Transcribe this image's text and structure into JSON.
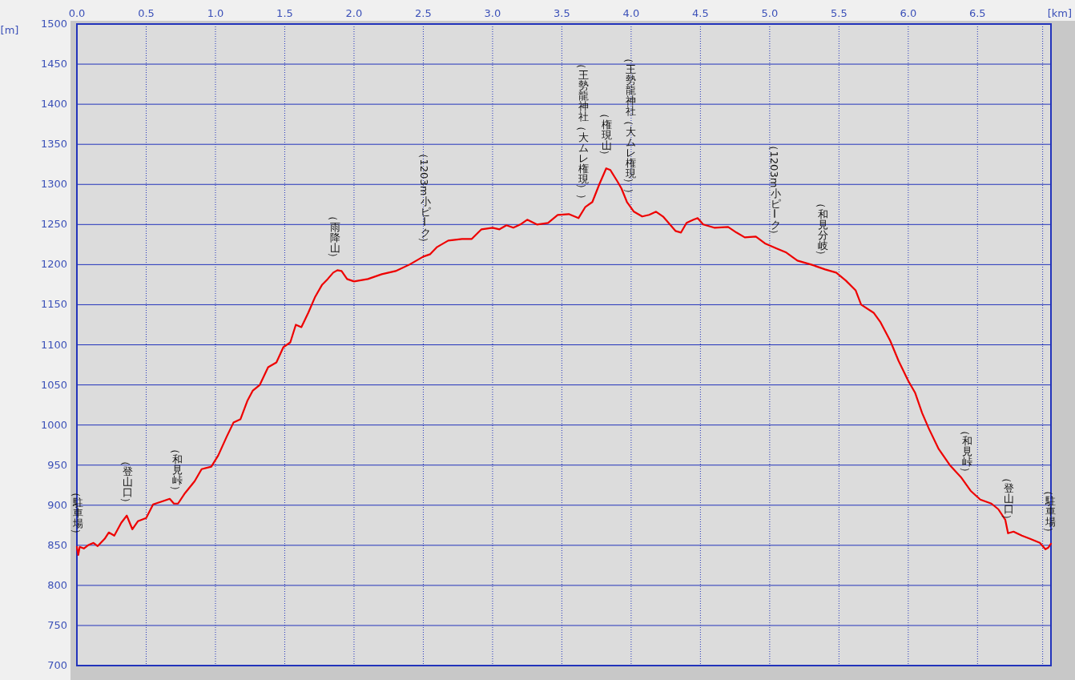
{
  "chart_data": {
    "type": "line",
    "xlabel": "[km]",
    "ylabel": "[m]",
    "xlim": [
      0,
      7.03
    ],
    "ylim": [
      700,
      1500
    ],
    "xticks": [
      {
        "value": 0,
        "label": "0.0"
      },
      0.5,
      {
        "value": 1,
        "label": "1.0"
      },
      1.5,
      {
        "value": 2,
        "label": "2.0"
      },
      2.5,
      {
        "value": 3,
        "label": "3.0"
      },
      3.5,
      {
        "value": 4,
        "label": "4.0"
      },
      4.5,
      {
        "value": 5,
        "label": "5.0"
      },
      5.5,
      {
        "value": 6,
        "label": "6.0"
      },
      6.5
    ],
    "yticks": [
      700,
      750,
      800,
      850,
      900,
      950,
      1000,
      1050,
      1100,
      1150,
      1200,
      1250,
      1300,
      1350,
      1400,
      1450,
      1500
    ],
    "grid": true,
    "marker": "none",
    "line_style": "solid",
    "ref_lines": [
      {
        "axis": "x",
        "value": 6.97,
        "color": "#2233bb",
        "line_style": "dotted"
      }
    ],
    "series": [
      {
        "color": "#ee0000",
        "x": [
          0,
          0.01,
          0.02,
          0.05,
          0.08,
          0.12,
          0.15,
          0.2,
          0.23,
          0.27,
          0.32,
          0.36,
          0.4,
          0.44,
          0.5,
          0.55,
          0.62,
          0.67,
          0.7,
          0.73,
          0.78,
          0.85,
          0.9,
          0.97,
          1.02,
          1.08,
          1.13,
          1.18,
          1.23,
          1.27,
          1.32,
          1.38,
          1.44,
          1.49,
          1.54,
          1.58,
          1.62,
          1.67,
          1.72,
          1.77,
          1.81,
          1.85,
          1.88,
          1.91,
          1.95,
          2,
          2.1,
          2.2,
          2.3,
          2.4,
          2.5,
          2.55,
          2.6,
          2.68,
          2.78,
          2.85,
          2.92,
          3,
          3.05,
          3.1,
          3.15,
          3.2,
          3.25,
          3.32,
          3.4,
          3.47,
          3.55,
          3.62,
          3.67,
          3.72,
          3.77,
          3.82,
          3.85,
          3.9,
          3.93,
          3.97,
          4.02,
          4.08,
          4.13,
          4.18,
          4.23,
          4.28,
          4.32,
          4.36,
          4.4,
          4.45,
          4.48,
          4.52,
          4.6,
          4.7,
          4.76,
          4.82,
          4.9,
          4.97,
          5.05,
          5.12,
          5.2,
          5.3,
          5.4,
          5.48,
          5.55,
          5.62,
          5.66,
          5.75,
          5.8,
          5.87,
          5.93,
          6,
          6.05,
          6.1,
          6.15,
          6.22,
          6.3,
          6.38,
          6.45,
          6.52,
          6.6,
          6.65,
          6.7,
          6.72,
          6.76,
          6.82,
          6.88,
          6.95,
          6.99,
          7.01,
          7.03
        ],
        "values": [
          848,
          838,
          848,
          846,
          850,
          853,
          849,
          858,
          866,
          862,
          878,
          887,
          870,
          880,
          884,
          901,
          905,
          908,
          902,
          902,
          915,
          930,
          945,
          948,
          962,
          985,
          1003,
          1007,
          1030,
          1043,
          1050,
          1072,
          1078,
          1097,
          1103,
          1125,
          1122,
          1140,
          1160,
          1175,
          1182,
          1190,
          1193,
          1192,
          1182,
          1179,
          1182,
          1188,
          1192,
          1200,
          1210,
          1213,
          1222,
          1230,
          1232,
          1232,
          1244,
          1246,
          1244,
          1249,
          1246,
          1250,
          1256,
          1250,
          1252,
          1262,
          1263,
          1258,
          1272,
          1278,
          1300,
          1320,
          1318,
          1304,
          1295,
          1278,
          1266,
          1260,
          1262,
          1266,
          1260,
          1250,
          1242,
          1240,
          1252,
          1256,
          1258,
          1250,
          1246,
          1247,
          1240,
          1234,
          1235,
          1226,
          1220,
          1215,
          1205,
          1200,
          1194,
          1190,
          1180,
          1168,
          1150,
          1140,
          1128,
          1105,
          1080,
          1055,
          1040,
          1015,
          995,
          970,
          950,
          935,
          918,
          907,
          902,
          895,
          882,
          865,
          867,
          862,
          858,
          853,
          845,
          847,
          852
        ]
      }
    ],
    "annotations": [
      {
        "text": "（駐車場）",
        "x": 0,
        "y": 848
      },
      {
        "text": "（登山口）",
        "x": 0.36,
        "y": 887
      },
      {
        "text": "（和見峠）",
        "x": 0.72,
        "y": 902
      },
      {
        "text": "（雨降山）",
        "x": 1.86,
        "y": 1192
      },
      {
        "text": "（1203m小ピーク）",
        "x": 2.51,
        "y": 1211
      },
      {
        "text": "（王勢龍神社（大ムレ権現））",
        "x": 3.65,
        "y": 1265
      },
      {
        "text": "（権現山）",
        "x": 3.82,
        "y": 1320
      },
      {
        "text": "（王勢龍神社（大ムレ権現））",
        "x": 3.99,
        "y": 1272
      },
      {
        "text": "（1203m小ピーク）",
        "x": 5.04,
        "y": 1221
      },
      {
        "text": "（和見分岐）",
        "x": 5.38,
        "y": 1195
      },
      {
        "text": "（和見峠）",
        "x": 6.42,
        "y": 925
      },
      {
        "text": "（登山口）",
        "x": 6.72,
        "y": 866
      },
      {
        "text": "（駐車場）",
        "x": 7.02,
        "y": 850
      }
    ]
  }
}
